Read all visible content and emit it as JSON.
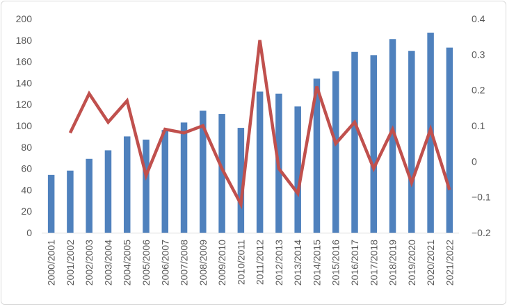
{
  "chart_data": {
    "type": "bar",
    "categories": [
      "2000/2001",
      "2001/2002",
      "2002/2003",
      "2003/2004",
      "2004/2005",
      "2005/2006",
      "2006/2007",
      "2007/2008",
      "2008/2009",
      "2009/2010",
      "2010/2011",
      "2011/2012",
      "2012/2013",
      "2013/2014",
      "2014/2015",
      "2015/2016",
      "2016/2017",
      "2017/2018",
      "2018/2019",
      "2019/2020",
      "2020/2021",
      "2021/2022"
    ],
    "series": [
      {
        "type": "bar",
        "axis": "left",
        "color": "#4f81bd",
        "values": [
          54,
          58,
          69,
          77,
          90,
          87,
          96,
          103,
          114,
          111,
          98,
          132,
          130,
          118,
          144,
          151,
          169,
          166,
          181,
          170,
          187,
          173
        ]
      },
      {
        "type": "line",
        "axis": "right",
        "color": "#c0504d",
        "values": [
          null,
          0.08,
          0.19,
          0.11,
          0.17,
          -0.04,
          0.09,
          0.08,
          0.1,
          -0.02,
          -0.12,
          0.34,
          -0.02,
          -0.09,
          0.21,
          0.05,
          0.11,
          -0.02,
          0.09,
          -0.06,
          0.09,
          -0.08
        ]
      }
    ],
    "y_left": {
      "ylim": [
        0,
        200
      ],
      "ticks": [
        "0",
        "20",
        "40",
        "60",
        "80",
        "100",
        "120",
        "140",
        "160",
        "180",
        "200"
      ]
    },
    "y_right": {
      "ylim": [
        -0.2,
        0.4
      ],
      "ticks": [
        "−0.2",
        "−0.1",
        "0",
        "0.1",
        "0.2",
        "0.3",
        "0.4"
      ]
    },
    "grid": false,
    "legend": "none",
    "title": "",
    "xlabel": "",
    "ylabel": ""
  }
}
